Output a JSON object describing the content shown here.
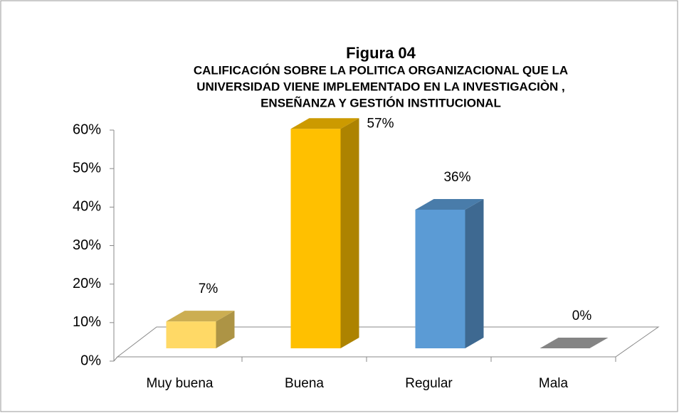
{
  "chart_data": {
    "type": "bar3d",
    "title": "Figura  04",
    "subtitle": [
      "CALIFICACIÓN SOBRE LA POLITICA ORGANIZACIONAL QUE LA",
      "UNIVERSIDAD VIENE IMPLEMENTADO EN LA INVESTIGACIÒN ,",
      "ENSEÑANZA Y GESTIÓN INSTITUCIONAL"
    ],
    "categories": [
      "Muy buena",
      "Buena",
      "Regular",
      "Mala"
    ],
    "values": [
      7,
      57,
      36,
      0
    ],
    "value_labels": [
      "7%",
      "57%",
      "36%",
      "0%"
    ],
    "colors": [
      "#FFD966",
      "#FFC000",
      "#5B9BD5",
      "#A5A5A5"
    ],
    "ylim": [
      0,
      60
    ],
    "yticks": [
      {
        "value": 0,
        "label": "0%"
      },
      {
        "value": 10,
        "label": "10%"
      },
      {
        "value": 20,
        "label": "20%"
      },
      {
        "value": 30,
        "label": "30%"
      },
      {
        "value": 40,
        "label": "40%"
      },
      {
        "value": 50,
        "label": "50%"
      },
      {
        "value": 60,
        "label": "60%"
      }
    ]
  }
}
